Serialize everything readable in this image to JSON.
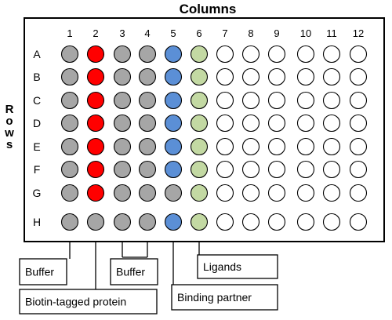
{
  "title": "Columns",
  "rows_label": "Rows",
  "columns": [
    "1",
    "2",
    "3",
    "4",
    "5",
    "6",
    "7",
    "8",
    "9",
    "10",
    "11",
    "12"
  ],
  "rows": [
    "A",
    "B",
    "C",
    "D",
    "E",
    "F",
    "G",
    "H"
  ],
  "colors": {
    "gray": "#a6a6a6",
    "red": "#ff0000",
    "blue": "#5b8fd6",
    "green": "#c3d9a3",
    "empty": "#ffffff",
    "stroke": "#000000"
  },
  "column_fill": [
    "gray",
    "red",
    "gray",
    "gray",
    "blue",
    "green",
    "empty",
    "empty",
    "empty",
    "empty",
    "empty",
    "empty"
  ],
  "well_overrides": [
    {
      "row": "H",
      "column": "2",
      "fill": "gray"
    },
    {
      "row": "G",
      "column": "5",
      "fill": "gray"
    }
  ],
  "legend": [
    {
      "label": "Buffer",
      "columns": [
        "1"
      ]
    },
    {
      "label": "Biotin-tagged protein",
      "columns": [
        "2"
      ]
    },
    {
      "label": "Buffer",
      "columns": [
        "3",
        "4"
      ]
    },
    {
      "label": "Binding partner",
      "columns": [
        "5"
      ]
    },
    {
      "label": "Ligands",
      "columns": [
        "6"
      ]
    }
  ]
}
